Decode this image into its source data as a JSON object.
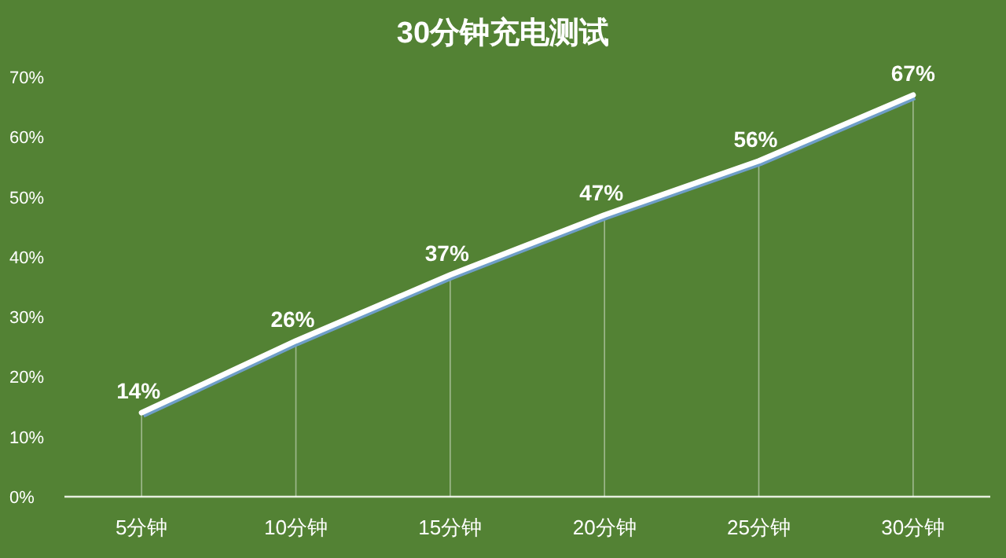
{
  "chart_data": {
    "type": "line",
    "title": "30分钟充电测试",
    "categories": [
      "5分钟",
      "10分钟",
      "15分钟",
      "20分钟",
      "25分钟",
      "30分钟"
    ],
    "series": [
      {
        "color": "#ffffff",
        "values": [
          14,
          26,
          37,
          47,
          56,
          67
        ]
      }
    ],
    "value_labels": [
      "14%",
      "26%",
      "37%",
      "47%",
      "56%",
      "67%"
    ],
    "ylim": [
      0,
      70
    ],
    "yticks": [
      {
        "value": 0,
        "label": "0%"
      },
      {
        "value": 10,
        "label": "10%"
      },
      {
        "value": 20,
        "label": "20%"
      },
      {
        "value": 30,
        "label": "30%"
      },
      {
        "value": 40,
        "label": "40%"
      },
      {
        "value": 50,
        "label": "50%"
      },
      {
        "value": 60,
        "label": "60%"
      },
      {
        "value": 70,
        "label": "70%"
      }
    ],
    "grid": "x",
    "marker": "none",
    "line_style": "solid"
  }
}
